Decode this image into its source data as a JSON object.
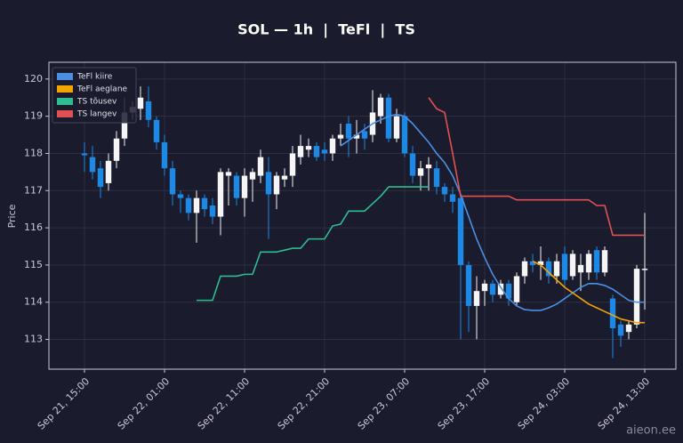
{
  "chart_data": {
    "type": "candlestick",
    "title": "SOL — 1h  |  TeFl  |  TS",
    "y_label": "Price",
    "watermark": "aieon.ee",
    "categories": [
      "Sep 21, 15:00",
      null,
      null,
      null,
      null,
      null,
      null,
      null,
      null,
      null,
      "Sep 22, 01:00",
      null,
      null,
      null,
      null,
      null,
      null,
      null,
      null,
      null,
      "Sep 22, 11:00",
      null,
      null,
      null,
      null,
      null,
      null,
      null,
      null,
      null,
      "Sep 22, 21:00",
      null,
      null,
      null,
      null,
      null,
      null,
      null,
      null,
      null,
      "Sep 23, 07:00",
      null,
      null,
      null,
      null,
      null,
      null,
      null,
      null,
      null,
      "Sep 23, 17:00",
      null,
      null,
      null,
      null,
      null,
      null,
      null,
      null,
      null,
      "Sep 24, 03:00",
      null,
      null,
      null,
      null,
      null,
      null,
      null,
      null,
      null,
      "Sep 24, 13:00"
    ],
    "open": [
      118.0,
      117.9,
      117.6,
      117.2,
      117.8,
      118.4,
      119.1,
      119.2,
      119.4,
      118.9,
      118.3,
      117.6,
      116.9,
      116.8,
      116.4,
      116.8,
      116.6,
      116.3,
      117.4,
      117.4,
      116.8,
      117.3,
      117.4,
      117.5,
      116.9,
      117.3,
      117.4,
      117.9,
      118.1,
      118.2,
      118.1,
      118.0,
      118.4,
      118.8,
      118.4,
      118.6,
      118.5,
      119.0,
      119.5,
      118.4,
      119.0,
      118.0,
      117.4,
      117.6,
      117.6,
      117.1,
      116.9,
      116.8,
      115.0,
      113.9,
      114.3,
      114.5,
      114.2,
      114.5,
      114.0,
      114.7,
      115.1,
      115.0,
      115.1,
      114.7,
      115.3,
      114.7,
      114.8,
      114.8,
      115.4,
      114.8,
      114.1,
      113.4,
      113.2,
      113.4,
      114.9
    ],
    "high": [
      118.3,
      118.2,
      117.8,
      118.0,
      118.6,
      119.5,
      119.4,
      119.8,
      119.8,
      119.0,
      118.5,
      117.8,
      117.0,
      116.9,
      117.0,
      116.9,
      116.8,
      117.6,
      117.6,
      117.5,
      117.6,
      117.6,
      118.1,
      117.9,
      117.5,
      117.6,
      118.2,
      118.5,
      118.4,
      118.3,
      118.3,
      118.5,
      118.8,
      119.0,
      118.9,
      118.8,
      119.7,
      119.6,
      119.6,
      119.2,
      119.1,
      118.2,
      117.8,
      117.9,
      117.8,
      117.2,
      117.1,
      116.9,
      115.1,
      114.7,
      114.6,
      114.6,
      114.6,
      114.6,
      114.8,
      115.2,
      115.3,
      115.5,
      115.2,
      115.3,
      115.5,
      115.4,
      115.3,
      115.4,
      115.5,
      115.5,
      114.2,
      113.5,
      113.5,
      115.0,
      116.4
    ],
    "low": [
      117.5,
      117.3,
      116.8,
      117.0,
      117.6,
      118.2,
      118.9,
      118.9,
      118.7,
      118.1,
      117.4,
      116.6,
      116.4,
      116.2,
      115.6,
      116.3,
      116.1,
      115.8,
      116.6,
      116.6,
      116.3,
      116.7,
      117.2,
      115.7,
      116.5,
      117.1,
      117.1,
      117.7,
      117.9,
      117.8,
      117.8,
      117.8,
      118.2,
      117.9,
      118.0,
      118.1,
      118.3,
      118.8,
      118.3,
      118.3,
      117.9,
      117.2,
      117.0,
      117.0,
      116.9,
      116.7,
      116.4,
      113.0,
      113.2,
      113.0,
      113.9,
      114.0,
      114.1,
      113.9,
      113.9,
      114.5,
      114.8,
      114.6,
      114.5,
      114.5,
      114.4,
      114.6,
      114.3,
      114.6,
      114.6,
      114.7,
      112.5,
      112.8,
      113.0,
      113.3,
      113.8
    ],
    "close": [
      117.95,
      117.5,
      117.1,
      117.8,
      118.4,
      119.1,
      119.25,
      119.5,
      118.9,
      118.3,
      117.6,
      116.9,
      116.8,
      116.4,
      116.8,
      116.5,
      116.3,
      117.5,
      117.5,
      116.8,
      117.4,
      117.5,
      117.9,
      116.9,
      117.4,
      117.4,
      118.0,
      118.2,
      118.2,
      117.9,
      118.0,
      118.4,
      118.5,
      118.4,
      118.5,
      118.4,
      119.1,
      119.5,
      118.4,
      119.0,
      118.0,
      117.4,
      117.6,
      117.7,
      117.1,
      116.9,
      116.7,
      115.0,
      113.9,
      114.3,
      114.5,
      114.2,
      114.5,
      114.1,
      114.7,
      115.1,
      115.0,
      115.1,
      114.7,
      115.1,
      114.6,
      115.3,
      115.0,
      115.3,
      114.8,
      115.4,
      113.3,
      113.1,
      113.4,
      114.9,
      114.9
    ],
    "up_color": "#f5f5f5",
    "down_color": "#1e88e5",
    "series": [
      {
        "name": "TeFl kiire",
        "color": "#4a90e2",
        "values": [
          null,
          null,
          null,
          null,
          null,
          null,
          null,
          null,
          null,
          null,
          null,
          null,
          null,
          null,
          null,
          null,
          null,
          null,
          null,
          null,
          null,
          null,
          null,
          null,
          null,
          null,
          null,
          null,
          null,
          null,
          null,
          null,
          118.2,
          118.35,
          118.5,
          118.65,
          118.8,
          118.9,
          119.0,
          119.05,
          119.0,
          118.8,
          118.55,
          118.3,
          118.0,
          117.75,
          117.4,
          116.9,
          116.3,
          115.7,
          115.2,
          114.75,
          114.4,
          114.1,
          113.9,
          113.8,
          113.78,
          113.78,
          113.85,
          113.95,
          114.1,
          114.25,
          114.4,
          114.5,
          114.5,
          114.45,
          114.35,
          114.2,
          114.05,
          114.0,
          114.0
        ]
      },
      {
        "name": "TeFl aeglane",
        "color": "#f0a500",
        "values": [
          null,
          null,
          null,
          null,
          null,
          null,
          null,
          null,
          null,
          null,
          null,
          null,
          null,
          null,
          null,
          null,
          null,
          null,
          null,
          null,
          null,
          null,
          null,
          null,
          null,
          null,
          null,
          null,
          null,
          null,
          null,
          null,
          null,
          null,
          null,
          null,
          null,
          null,
          null,
          null,
          null,
          null,
          null,
          null,
          null,
          null,
          null,
          null,
          null,
          null,
          null,
          null,
          null,
          null,
          null,
          null,
          115.1,
          115.0,
          114.8,
          114.6,
          114.4,
          114.25,
          114.1,
          113.95,
          113.85,
          113.75,
          113.65,
          113.55,
          113.5,
          113.45,
          113.45
        ]
      },
      {
        "name": "TS tõusev",
        "color": "#2ebd93",
        "values": [
          null,
          null,
          null,
          null,
          null,
          null,
          null,
          null,
          null,
          null,
          null,
          null,
          null,
          null,
          114.05,
          114.05,
          114.05,
          114.7,
          114.7,
          114.7,
          114.75,
          114.75,
          115.35,
          115.35,
          115.35,
          115.4,
          115.45,
          115.45,
          115.7,
          115.7,
          115.7,
          116.05,
          116.1,
          116.45,
          116.45,
          116.45,
          116.65,
          116.85,
          117.1,
          117.1,
          117.1,
          117.1,
          117.1,
          117.1,
          null,
          null,
          null,
          null,
          null,
          null,
          null,
          null,
          null,
          null,
          null,
          null,
          null,
          null,
          null,
          null,
          null,
          null,
          null,
          null,
          null,
          null,
          null,
          null,
          null,
          null,
          null
        ]
      },
      {
        "name": "TS langev",
        "color": "#e05252",
        "values": [
          null,
          null,
          null,
          null,
          null,
          null,
          null,
          null,
          null,
          null,
          null,
          null,
          null,
          null,
          null,
          null,
          null,
          null,
          null,
          null,
          null,
          null,
          null,
          null,
          null,
          null,
          null,
          null,
          null,
          null,
          null,
          null,
          null,
          null,
          null,
          null,
          null,
          null,
          null,
          null,
          null,
          null,
          null,
          119.5,
          119.2,
          119.1,
          118.0,
          116.85,
          116.85,
          116.85,
          116.85,
          116.85,
          116.85,
          116.85,
          116.75,
          116.75,
          116.75,
          116.75,
          116.75,
          116.75,
          116.75,
          116.75,
          116.75,
          116.75,
          116.6,
          116.6,
          115.8,
          115.8,
          115.8,
          115.8,
          115.8
        ]
      }
    ],
    "ylim": [
      112.2,
      120.45
    ],
    "yticks": [
      113,
      114,
      115,
      116,
      117,
      118,
      119,
      120
    ],
    "grid": true,
    "legend": "upper left"
  }
}
